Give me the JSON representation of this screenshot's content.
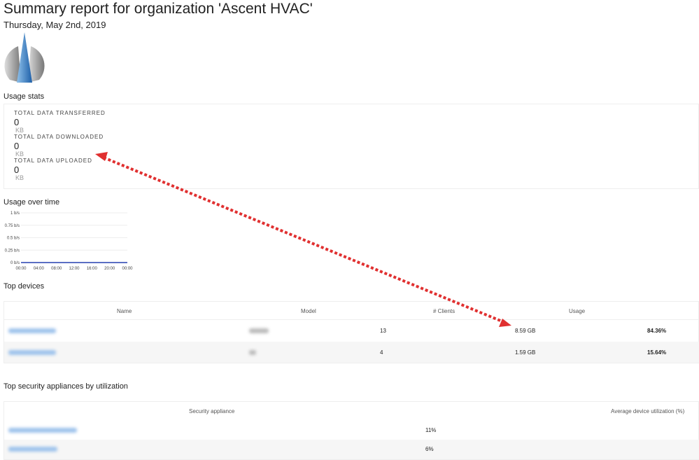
{
  "header": {
    "title": "Summary report for organization 'Ascent HVAC'",
    "date": "Thursday, May 2nd, 2019"
  },
  "usage_stats": {
    "title": "Usage stats",
    "items": [
      {
        "label": "TOTAL DATA TRANSFERRED",
        "value": 0,
        "unit": "KB"
      },
      {
        "label": "TOTAL DATA DOWNLOADED",
        "value": 0,
        "unit": "KB"
      },
      {
        "label": "TOTAL DATA UPLOADED",
        "value": 0,
        "unit": "KB"
      }
    ]
  },
  "usage_chart": {
    "type": "line",
    "title": "Usage over time",
    "categories": [
      "00:00",
      "04:00",
      "08:00",
      "12:00",
      "16:00",
      "20:00",
      "00:00"
    ],
    "values": [
      0,
      0,
      0,
      0,
      0,
      0,
      0
    ],
    "color": "#5b6fc4",
    "ylim": [
      0,
      1
    ],
    "yticks": [
      {
        "value": 0,
        "label": "0 b/s"
      },
      {
        "value": 0.25,
        "label": "0.25 b/s"
      },
      {
        "value": 0.5,
        "label": "0.5 b/s"
      },
      {
        "value": 0.75,
        "label": "0.75 b/s"
      },
      {
        "value": 1,
        "label": "1 b/s"
      }
    ],
    "grid": true
  },
  "top_devices": {
    "title": "Top devices",
    "columns": [
      "Name",
      "Model",
      "# Clients",
      "Usage"
    ],
    "rows": [
      {
        "clients": 13,
        "usage": "8.59 GB",
        "percent": "84.36%"
      },
      {
        "clients": 4,
        "usage": "1.59 GB",
        "percent": "15.64%"
      }
    ]
  },
  "security": {
    "title": "Top security appliances by utilization",
    "columns": [
      "Security appliance",
      "Average device utilization (%)"
    ],
    "rows": [
      {
        "utilization": "11%"
      },
      {
        "utilization": "6%"
      }
    ]
  }
}
